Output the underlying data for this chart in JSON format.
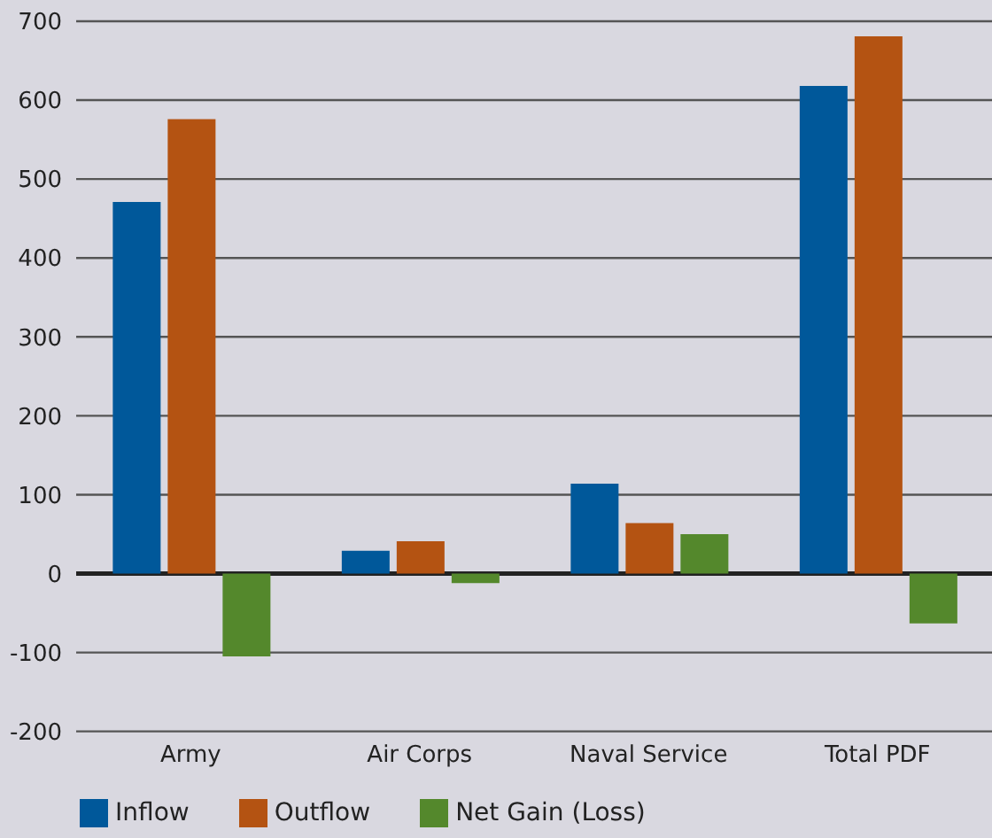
{
  "chart_data": {
    "type": "bar",
    "categories": [
      "Army",
      "Air Corps",
      "Naval Service",
      "Total PDF"
    ],
    "series": [
      {
        "name": "Inflow",
        "color": "#00589a",
        "values": [
          471,
          29,
          114,
          618
        ]
      },
      {
        "name": "Outflow",
        "color": "#b45312",
        "values": [
          576,
          41,
          64,
          681
        ]
      },
      {
        "name": "Net Gain (Loss)",
        "color": "#54882c",
        "values": [
          -105,
          -12,
          50,
          -63
        ]
      }
    ],
    "ylim": [
      -200,
      700
    ],
    "yticks": [
      -200,
      -100,
      0,
      100,
      200,
      300,
      400,
      500,
      600,
      700
    ],
    "grid": "y",
    "legend": "bottom left"
  }
}
